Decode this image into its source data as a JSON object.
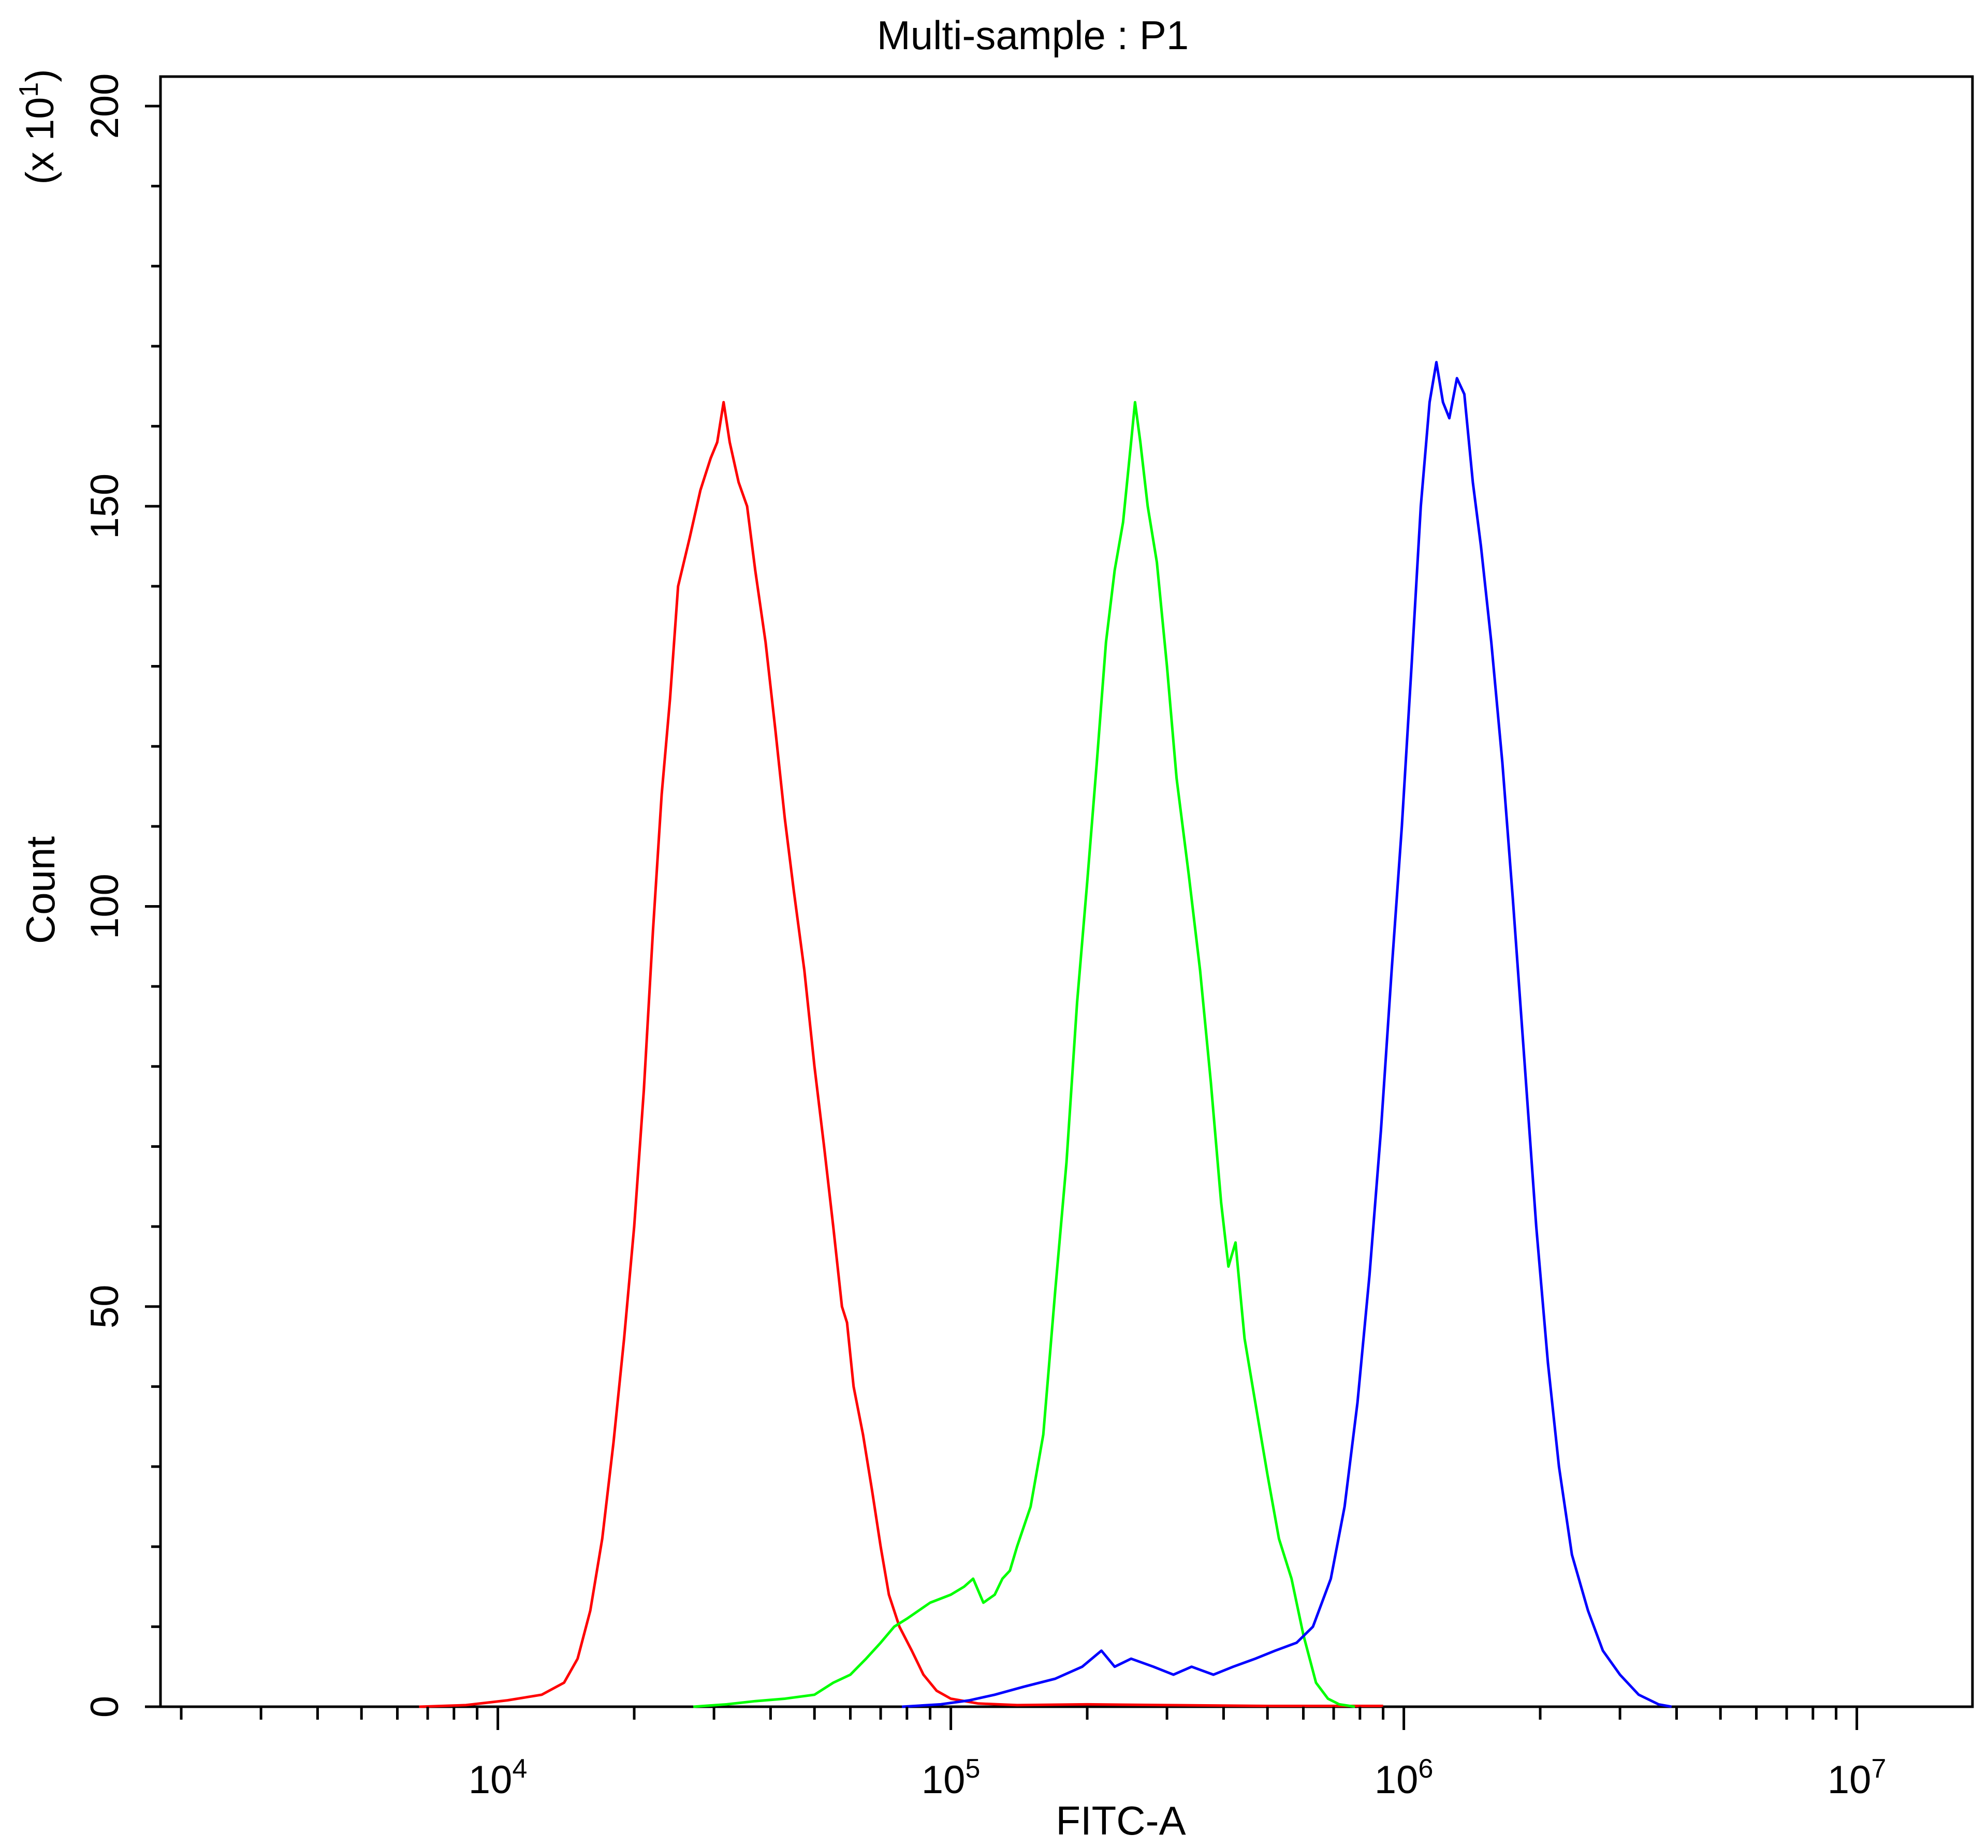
{
  "chart_data": {
    "type": "line",
    "title": "Multi-sample : P1",
    "xlabel": "FITC-A",
    "ylabel": "Count",
    "y_multiplier": "(x 10",
    "y_multiplier_exp": "1",
    "y_multiplier_close": ")",
    "x_scale": "log",
    "xlim": [
      1800,
      18000000
    ],
    "ylim": [
      0,
      200
    ],
    "x_major_ticks": [
      {
        "value": 10000,
        "base": "10",
        "exp": "4"
      },
      {
        "value": 100000,
        "base": "10",
        "exp": "5"
      },
      {
        "value": 1000000,
        "base": "10",
        "exp": "6"
      },
      {
        "value": 10000000,
        "base": "10",
        "exp": "7"
      }
    ],
    "y_major_ticks": [
      0,
      50,
      100,
      150,
      200
    ],
    "y_minor_ticks": [
      10,
      20,
      30,
      40,
      60,
      70,
      80,
      90,
      110,
      120,
      130,
      140,
      160,
      170,
      180,
      190
    ],
    "grid": false,
    "legend": "none",
    "series": [
      {
        "color": "#ff0000",
        "points": [
          [
            6700,
            0
          ],
          [
            8500,
            0.2
          ],
          [
            10500,
            0.8
          ],
          [
            12500,
            1.5
          ],
          [
            14000,
            3
          ],
          [
            15000,
            6
          ],
          [
            16000,
            12
          ],
          [
            17000,
            21
          ],
          [
            18000,
            33
          ],
          [
            19000,
            46
          ],
          [
            20000,
            60
          ],
          [
            21000,
            77
          ],
          [
            22000,
            97
          ],
          [
            23000,
            114
          ],
          [
            24000,
            126
          ],
          [
            25000,
            140
          ],
          [
            26500,
            146
          ],
          [
            28000,
            152
          ],
          [
            29500,
            156
          ],
          [
            30500,
            158
          ],
          [
            31500,
            163
          ],
          [
            32500,
            158
          ],
          [
            34000,
            153
          ],
          [
            35500,
            150
          ],
          [
            37000,
            142
          ],
          [
            39000,
            133
          ],
          [
            41000,
            122
          ],
          [
            43000,
            111
          ],
          [
            45000,
            102
          ],
          [
            47500,
            92
          ],
          [
            50000,
            80
          ],
          [
            52500,
            70
          ],
          [
            55000,
            60
          ],
          [
            57500,
            50
          ],
          [
            59000,
            48
          ],
          [
            61000,
            40
          ],
          [
            64000,
            34
          ],
          [
            67000,
            27
          ],
          [
            70000,
            20
          ],
          [
            73000,
            14
          ],
          [
            77000,
            10
          ],
          [
            82000,
            7
          ],
          [
            87000,
            4
          ],
          [
            93000,
            2
          ],
          [
            100000,
            1
          ],
          [
            115000,
            0.4
          ],
          [
            140000,
            0.2
          ],
          [
            200000,
            0.3
          ],
          [
            300000,
            0.2
          ],
          [
            500000,
            0.1
          ],
          [
            900000,
            0.1
          ]
        ]
      },
      {
        "color": "#00ff00",
        "points": [
          [
            27000,
            0
          ],
          [
            32000,
            0.3
          ],
          [
            37000,
            0.7
          ],
          [
            43000,
            1
          ],
          [
            50000,
            1.5
          ],
          [
            55000,
            3
          ],
          [
            60000,
            4
          ],
          [
            65000,
            6
          ],
          [
            70000,
            8
          ],
          [
            75000,
            10
          ],
          [
            80000,
            11
          ],
          [
            90000,
            13
          ],
          [
            100000,
            14
          ],
          [
            107000,
            15
          ],
          [
            112000,
            16
          ],
          [
            118000,
            13
          ],
          [
            125000,
            14
          ],
          [
            130000,
            16
          ],
          [
            135000,
            17
          ],
          [
            140000,
            20
          ],
          [
            150000,
            25
          ],
          [
            160000,
            34
          ],
          [
            170000,
            52
          ],
          [
            180000,
            68
          ],
          [
            190000,
            88
          ],
          [
            200000,
            103
          ],
          [
            210000,
            118
          ],
          [
            220000,
            133
          ],
          [
            230000,
            142
          ],
          [
            240000,
            148
          ],
          [
            250000,
            158
          ],
          [
            255000,
            163
          ],
          [
            262000,
            158
          ],
          [
            272000,
            150
          ],
          [
            285000,
            143
          ],
          [
            300000,
            130
          ],
          [
            315000,
            116
          ],
          [
            335000,
            104
          ],
          [
            355000,
            92
          ],
          [
            375000,
            78
          ],
          [
            395000,
            63
          ],
          [
            410000,
            55
          ],
          [
            425000,
            58
          ],
          [
            445000,
            46
          ],
          [
            470000,
            38
          ],
          [
            500000,
            29
          ],
          [
            530000,
            21
          ],
          [
            565000,
            16
          ],
          [
            600000,
            9
          ],
          [
            640000,
            3
          ],
          [
            680000,
            1
          ],
          [
            720000,
            0.3
          ],
          [
            780000,
            0
          ]
        ]
      },
      {
        "color": "#0000ff",
        "points": [
          [
            78000,
            0
          ],
          [
            95000,
            0.3
          ],
          [
            110000,
            0.8
          ],
          [
            125000,
            1.5
          ],
          [
            145000,
            2.5
          ],
          [
            170000,
            3.5
          ],
          [
            195000,
            5
          ],
          [
            215000,
            7
          ],
          [
            230000,
            5
          ],
          [
            250000,
            6
          ],
          [
            280000,
            5
          ],
          [
            310000,
            4
          ],
          [
            340000,
            5
          ],
          [
            380000,
            4
          ],
          [
            420000,
            5
          ],
          [
            470000,
            6
          ],
          [
            520000,
            7
          ],
          [
            580000,
            8
          ],
          [
            630000,
            10
          ],
          [
            690000,
            16
          ],
          [
            740000,
            25
          ],
          [
            790000,
            38
          ],
          [
            840000,
            54
          ],
          [
            890000,
            72
          ],
          [
            940000,
            92
          ],
          [
            990000,
            110
          ],
          [
            1040000,
            130
          ],
          [
            1090000,
            150
          ],
          [
            1140000,
            163
          ],
          [
            1180000,
            168
          ],
          [
            1220000,
            163
          ],
          [
            1260000,
            161
          ],
          [
            1310000,
            166
          ],
          [
            1360000,
            164
          ],
          [
            1420000,
            153
          ],
          [
            1480000,
            145
          ],
          [
            1560000,
            133
          ],
          [
            1650000,
            118
          ],
          [
            1740000,
            101
          ],
          [
            1850000,
            80
          ],
          [
            1960000,
            60
          ],
          [
            2080000,
            43
          ],
          [
            2200000,
            30
          ],
          [
            2350000,
            19
          ],
          [
            2550000,
            12
          ],
          [
            2750000,
            7
          ],
          [
            3000000,
            4
          ],
          [
            3300000,
            1.5
          ],
          [
            3650000,
            0.3
          ],
          [
            3900000,
            0
          ]
        ]
      }
    ]
  }
}
